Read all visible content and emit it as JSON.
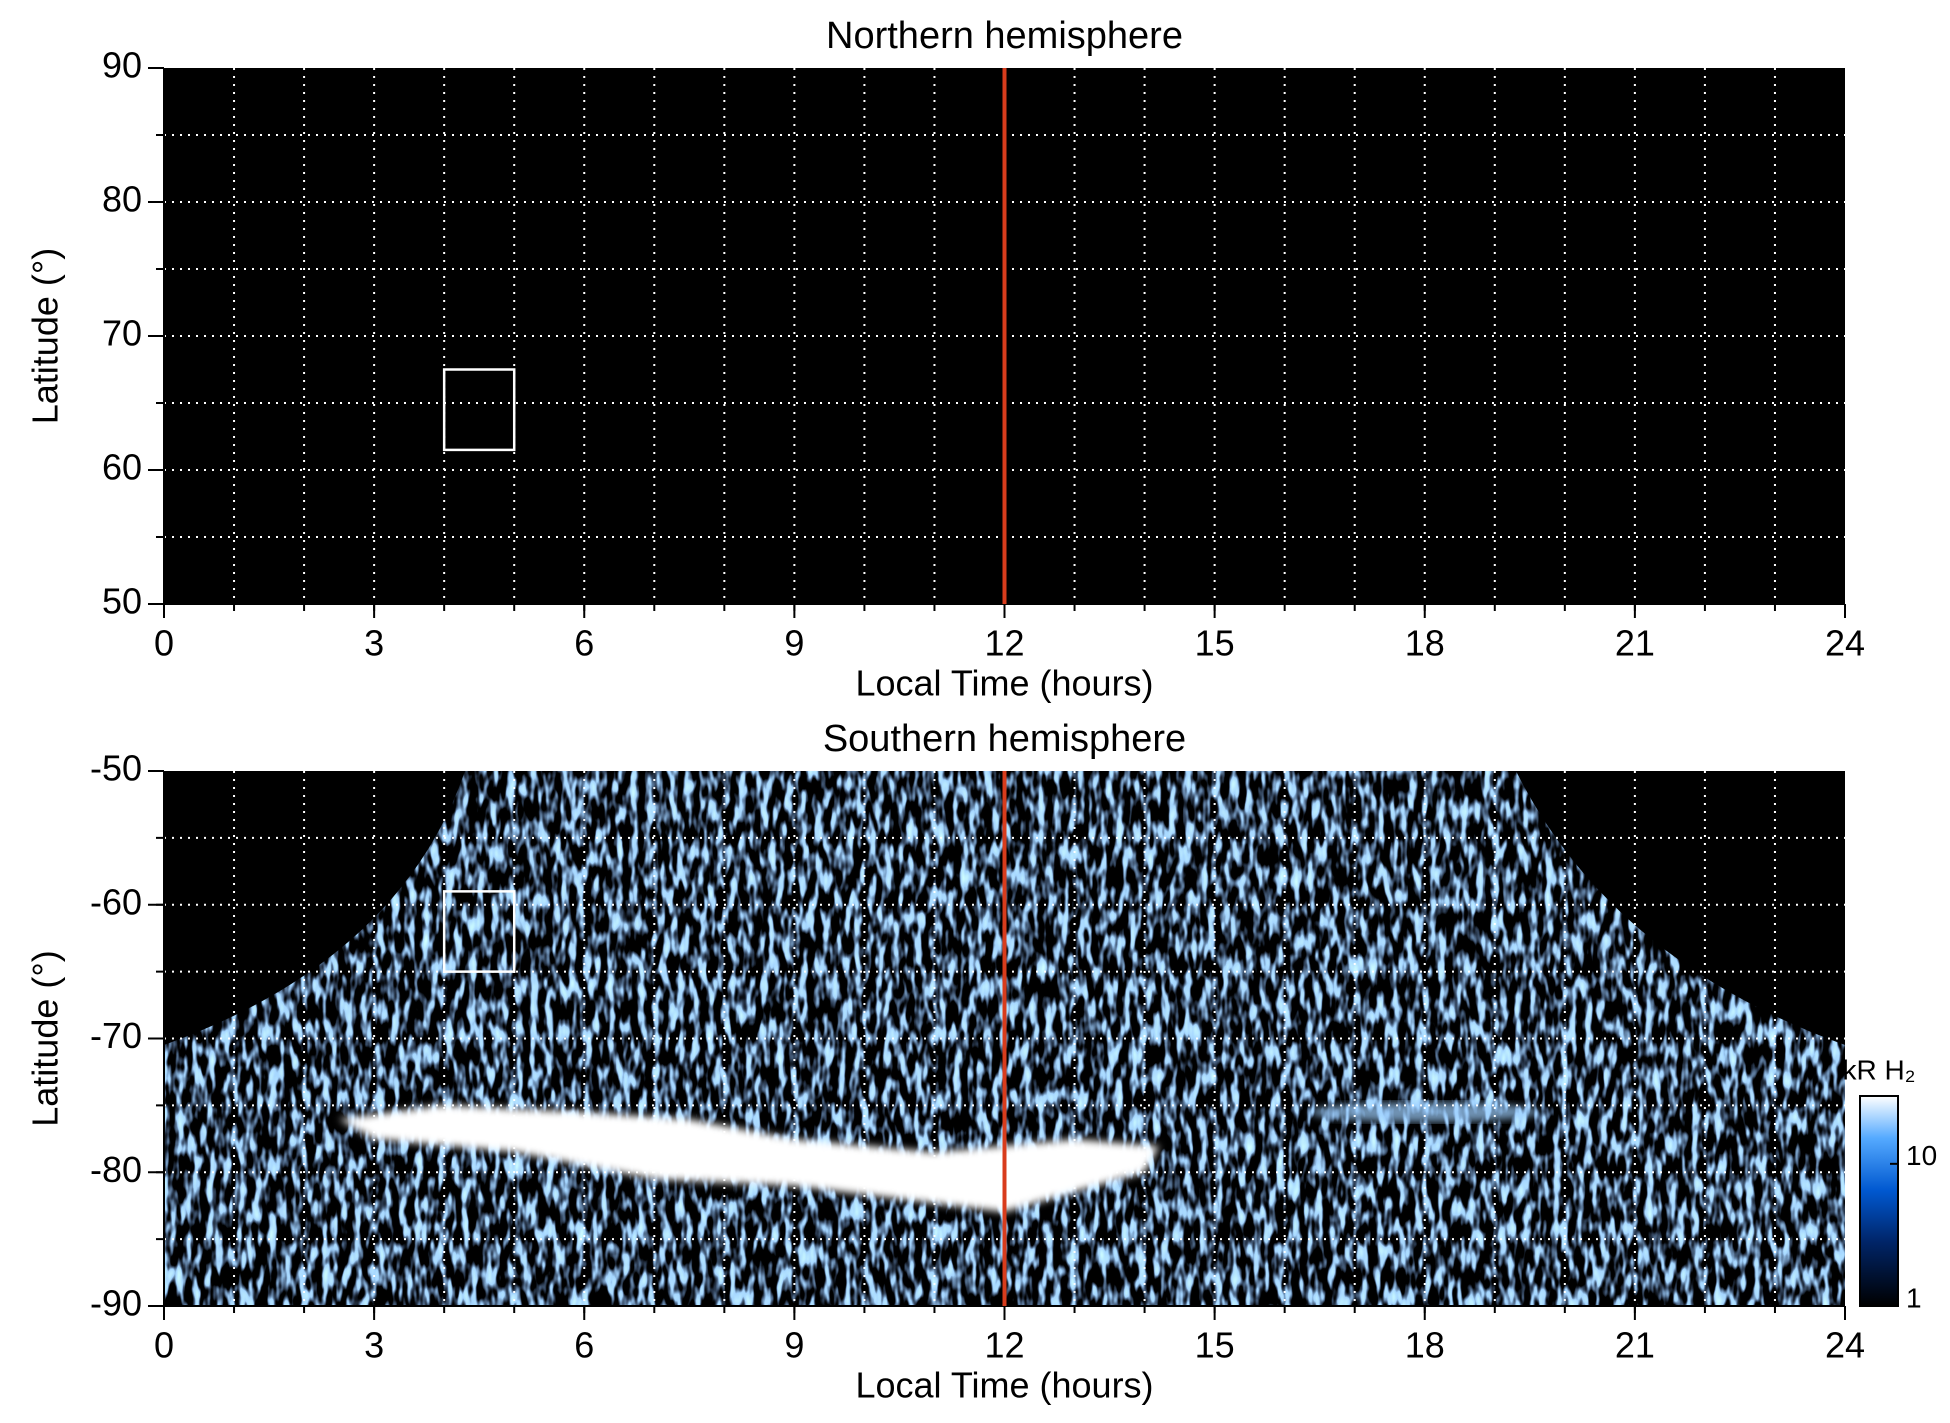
{
  "chart_data": [
    {
      "type": "heatmap",
      "title": "Northern hemisphere",
      "xlabel": "Local Time (hours)",
      "ylabel": "Latitude (°)",
      "xlim": [
        0,
        24
      ],
      "xticks": [
        0,
        3,
        6,
        9,
        12,
        15,
        18,
        21,
        24
      ],
      "ylim": [
        50,
        90
      ],
      "yticks": [
        50,
        60,
        70,
        80,
        90
      ],
      "grid": true,
      "grid_x_step": 1,
      "grid_y_step": 5,
      "vline": {
        "x": 12,
        "color": "#d83c1c"
      },
      "box": {
        "x": [
          4,
          5
        ],
        "y": [
          61.5,
          67.5
        ],
        "color": "#ffffff"
      }
    },
    {
      "type": "heatmap",
      "title": "Southern hemisphere",
      "xlabel": "Local Time (hours)",
      "ylabel": "Latitude (°)",
      "xlim": [
        0,
        24
      ],
      "xticks": [
        0,
        3,
        6,
        9,
        12,
        15,
        18,
        21,
        24
      ],
      "ylim": [
        -90,
        -50
      ],
      "yticks": [
        -90,
        -80,
        -70,
        -60,
        -50
      ],
      "grid": true,
      "grid_x_step": 1,
      "grid_y_step": 5,
      "vline": {
        "x": 12,
        "color": "#d83c1c"
      },
      "box": {
        "x": [
          4,
          5
        ],
        "y": [
          -65,
          -59
        ],
        "color": "#ffffff"
      },
      "colorbar": {
        "label": "kR H₂",
        "scale": "log",
        "lim": [
          1,
          30
        ],
        "ticks": [
          1,
          10
        ]
      }
    }
  ]
}
